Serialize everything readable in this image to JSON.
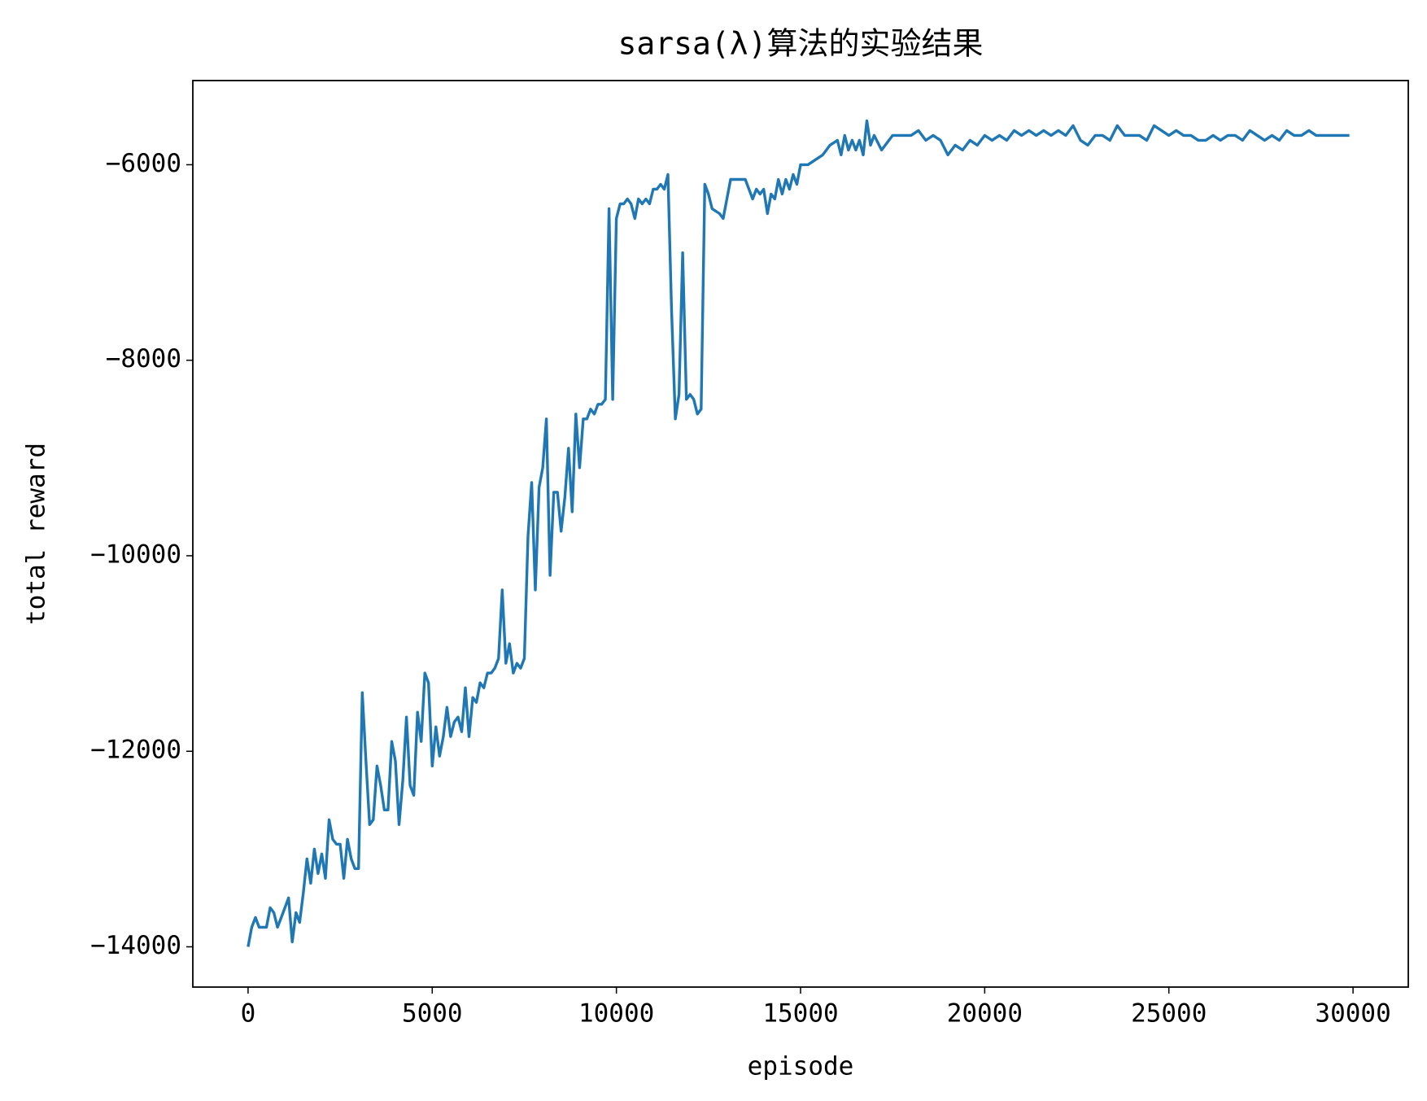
{
  "chart_data": {
    "type": "line",
    "title": "sarsa(λ)算法的实验结果",
    "x_label": "episode",
    "y_label": "total reward",
    "color": "#1f77b4",
    "x": [
      0,
      100,
      200,
      300,
      500,
      600,
      700,
      800,
      900,
      1000,
      1100,
      1200,
      1300,
      1400,
      1500,
      1600,
      1700,
      1800,
      1900,
      2000,
      2100,
      2200,
      2300,
      2400,
      2500,
      2600,
      2700,
      2800,
      2900,
      3000,
      3100,
      3200,
      3300,
      3400,
      3500,
      3600,
      3700,
      3800,
      3900,
      4000,
      4100,
      4200,
      4300,
      4400,
      4500,
      4600,
      4700,
      4800,
      4900,
      5000,
      5100,
      5200,
      5300,
      5400,
      5500,
      5600,
      5700,
      5800,
      5900,
      6000,
      6100,
      6200,
      6300,
      6400,
      6500,
      6600,
      6700,
      6800,
      6900,
      7000,
      7100,
      7200,
      7300,
      7400,
      7500,
      7600,
      7700,
      7800,
      7900,
      8000,
      8100,
      8200,
      8300,
      8400,
      8500,
      8600,
      8700,
      8800,
      8900,
      9000,
      9100,
      9200,
      9300,
      9400,
      9500,
      9600,
      9700,
      9800,
      9900,
      10000,
      10100,
      10200,
      10300,
      10400,
      10500,
      10600,
      10700,
      10800,
      10900,
      11000,
      11100,
      11200,
      11300,
      11400,
      11500,
      11600,
      11700,
      11800,
      11900,
      12000,
      12100,
      12200,
      12300,
      12400,
      12500,
      12600,
      12800,
      12900,
      13100,
      13300,
      13500,
      13700,
      13800,
      13900,
      14000,
      14100,
      14200,
      14300,
      14400,
      14500,
      14600,
      14700,
      14800,
      14900,
      15000,
      15200,
      15400,
      15600,
      15800,
      16000,
      16100,
      16200,
      16300,
      16400,
      16500,
      16600,
      16700,
      16800,
      16900,
      17000,
      17200,
      17500,
      17800,
      18000,
      18200,
      18400,
      18600,
      18800,
      19000,
      19200,
      19400,
      19600,
      19800,
      20000,
      20200,
      20400,
      20600,
      20800,
      21000,
      21200,
      21400,
      21600,
      21800,
      22000,
      22200,
      22400,
      22600,
      22800,
      23000,
      23200,
      23400,
      23600,
      23800,
      24000,
      24200,
      24400,
      24600,
      24800,
      25000,
      25200,
      25400,
      25600,
      25800,
      26000,
      26200,
      26400,
      26600,
      26800,
      27000,
      27200,
      27400,
      27600,
      27800,
      28000,
      28200,
      28400,
      28600,
      28800,
      29000,
      29200,
      29400,
      29600,
      29800,
      29900
    ],
    "values": [
      -14000,
      -13800,
      -13700,
      -13800,
      -13800,
      -13600,
      -13650,
      -13800,
      -13700,
      -13600,
      -13500,
      -13950,
      -13650,
      -13750,
      -13450,
      -13100,
      -13350,
      -13000,
      -13250,
      -13050,
      -13300,
      -12700,
      -12900,
      -12950,
      -12950,
      -13300,
      -12900,
      -13100,
      -13200,
      -13200,
      -11400,
      -12100,
      -12750,
      -12700,
      -12150,
      -12350,
      -12600,
      -12600,
      -11900,
      -12100,
      -12750,
      -12300,
      -11650,
      -12350,
      -12450,
      -11600,
      -11900,
      -11200,
      -11300,
      -12150,
      -11750,
      -12050,
      -11850,
      -11550,
      -11850,
      -11700,
      -11650,
      -11800,
      -11350,
      -11850,
      -11450,
      -11500,
      -11300,
      -11350,
      -11200,
      -11200,
      -11150,
      -11050,
      -10350,
      -11100,
      -10900,
      -11200,
      -11100,
      -11150,
      -11050,
      -9800,
      -9250,
      -10350,
      -9300,
      -9100,
      -8600,
      -10200,
      -9350,
      -9350,
      -9750,
      -9400,
      -8900,
      -9550,
      -8550,
      -9100,
      -8600,
      -8600,
      -8500,
      -8550,
      -8450,
      -8450,
      -8400,
      -6450,
      -8400,
      -6550,
      -6400,
      -6400,
      -6350,
      -6400,
      -6550,
      -6350,
      -6400,
      -6350,
      -6400,
      -6250,
      -6250,
      -6200,
      -6250,
      -6100,
      -7500,
      -8600,
      -8350,
      -6900,
      -8400,
      -8350,
      -8400,
      -8550,
      -8500,
      -6200,
      -6300,
      -6450,
      -6500,
      -6550,
      -6150,
      -6150,
      -6150,
      -6350,
      -6250,
      -6300,
      -6250,
      -6500,
      -6300,
      -6350,
      -6150,
      -6300,
      -6150,
      -6250,
      -6100,
      -6200,
      -6000,
      -6000,
      -5950,
      -5900,
      -5800,
      -5750,
      -5900,
      -5700,
      -5850,
      -5750,
      -5850,
      -5750,
      -5900,
      -5550,
      -5800,
      -5700,
      -5850,
      -5700,
      -5700,
      -5700,
      -5650,
      -5750,
      -5700,
      -5750,
      -5900,
      -5800,
      -5850,
      -5750,
      -5800,
      -5700,
      -5750,
      -5700,
      -5750,
      -5650,
      -5700,
      -5650,
      -5700,
      -5650,
      -5700,
      -5650,
      -5700,
      -5600,
      -5750,
      -5800,
      -5700,
      -5700,
      -5750,
      -5600,
      -5700,
      -5700,
      -5700,
      -5750,
      -5600,
      -5650,
      -5700,
      -5650,
      -5700,
      -5700,
      -5750,
      -5750,
      -5700,
      -5750,
      -5700,
      -5700,
      -5750,
      -5650,
      -5700,
      -5750,
      -5700,
      -5750,
      -5650,
      -5700,
      -5700,
      -5650,
      -5700,
      -5700,
      -5700,
      -5700,
      -5700,
      -5700
    ],
    "xlim": [
      -1500,
      31500
    ],
    "ylim": [
      -14412,
      -5139
    ],
    "xticks": [
      0,
      5000,
      10000,
      15000,
      20000,
      25000,
      30000
    ],
    "yticks": [
      {
        "value": -14000,
        "label": "−14000"
      },
      {
        "value": -12000,
        "label": "−12000"
      },
      {
        "value": -10000,
        "label": "−10000"
      },
      {
        "value": -8000,
        "label": "−8000"
      },
      {
        "value": -6000,
        "label": "−6000"
      }
    ]
  }
}
